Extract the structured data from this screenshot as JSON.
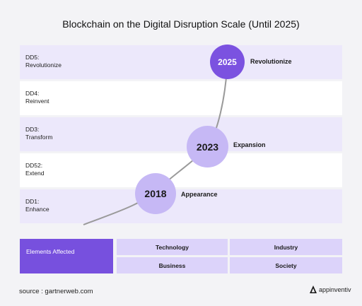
{
  "title": "Blockchain on the Digital Disruption Scale (Until 2025)",
  "levels": [
    {
      "code": "DD5:",
      "name": "Revolutionize"
    },
    {
      "code": "DD4:",
      "name": "Reinvent"
    },
    {
      "code": "DD3:",
      "name": "Transform"
    },
    {
      "code": "DD52:",
      "name": "Extend"
    },
    {
      "code": "DD1:",
      "name": "Enhance"
    }
  ],
  "stages": [
    {
      "year": "2025",
      "label": "Revolutionize"
    },
    {
      "year": "2023",
      "label": "Expansion"
    },
    {
      "year": "2018",
      "label": "Appearance"
    }
  ],
  "elements": {
    "header": "Elements Affected",
    "items": [
      "Technology",
      "Industry",
      "Business",
      "Society"
    ]
  },
  "source": "source : gartnerweb.com",
  "brand": "appinventiv",
  "colors": {
    "accent": "#7750de",
    "circle_dark": "#7b52e0",
    "circle_light": "#c6b8f5",
    "band_shaded": "#ece8fb",
    "cell": "#dcd3fa"
  }
}
